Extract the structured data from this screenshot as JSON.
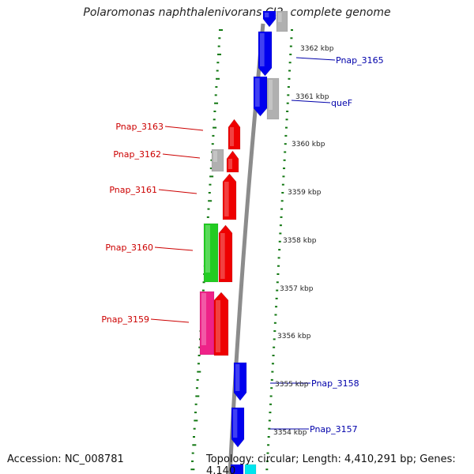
{
  "title": "Polaromonas naphthalenivorans CJ2, complete genome",
  "footer": {
    "accession": "Accession: NC_008781",
    "summary": "Topology: circular; Length: 4,410,291 bp; Genes: 4,140"
  },
  "scale_labels": [
    "3362 kbp",
    "3361 kbp",
    "3360 kbp",
    "3359 kbp",
    "3358 kbp",
    "3357 kbp",
    "3356 kbp",
    "3355 kbp",
    "3354 kbp"
  ],
  "forward_labels": [
    "Pnap_3165",
    "queF",
    "Pnap_3158",
    "Pnap_3157"
  ],
  "reverse_labels": [
    "Pnap_3163",
    "Pnap_3162",
    "Pnap_3161",
    "Pnap_3160",
    "Pnap_3159"
  ],
  "colors": {
    "forward_cds": "#0000ee",
    "reverse_cds": "#ee0000",
    "gene_grey": "#b0b0b0",
    "green_feature": "#22cc22",
    "magenta_feature": "#ee2288",
    "cyan_feature": "#00e5ee",
    "backbone": "#8c8c8c",
    "tick": "#117711",
    "forward_label": "#0000aa",
    "reverse_label": "#cc0000"
  }
}
